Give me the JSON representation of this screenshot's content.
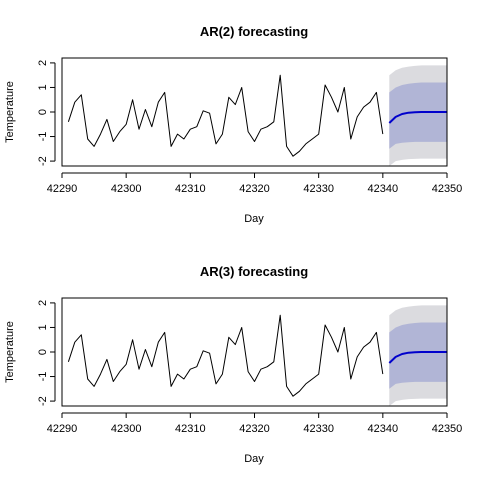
{
  "chart_data": [
    {
      "type": "line",
      "title": "AR(2) forecasting",
      "xlabel": "Day",
      "ylabel": "Temperature",
      "xlim": [
        42290,
        42350
      ],
      "ylim": [
        -2.2,
        2.2
      ],
      "x_ticks": [
        42290,
        42300,
        42310,
        42320,
        42330,
        42340,
        42350
      ],
      "y_ticks": [
        -2,
        -1,
        0,
        1,
        2
      ],
      "grid": false,
      "series": [
        {
          "role": "observed",
          "color": "#000000",
          "x": [
            42291,
            42292,
            42293,
            42294,
            42295,
            42296,
            42297,
            42298,
            42299,
            42300,
            42301,
            42302,
            42303,
            42304,
            42305,
            42306,
            42307,
            42308,
            42309,
            42310,
            42311,
            42312,
            42313,
            42314,
            42315,
            42316,
            42317,
            42318,
            42319,
            42320,
            42321,
            42322,
            42323,
            42324,
            42325,
            42326,
            42327,
            42328,
            42329,
            42330,
            42331,
            42332,
            42333,
            42334,
            42335,
            42336,
            42337,
            42338,
            42339,
            42340
          ],
          "y": [
            -0.4,
            0.4,
            0.7,
            -1.1,
            -1.4,
            -0.9,
            -0.3,
            -1.2,
            -0.8,
            -0.5,
            0.5,
            -0.7,
            0.1,
            -0.6,
            0.4,
            0.8,
            -1.4,
            -0.9,
            -1.1,
            -0.7,
            -0.6,
            0.05,
            -0.05,
            -1.3,
            -0.9,
            0.6,
            0.3,
            1.0,
            -0.8,
            -1.2,
            -0.7,
            -0.6,
            -0.4,
            1.5,
            -1.4,
            -1.8,
            -1.6,
            -1.3,
            -1.1,
            -0.9,
            1.1,
            0.6,
            0.0,
            1.0,
            -1.1,
            -0.2,
            0.2,
            0.4,
            0.8,
            -0.9
          ]
        },
        {
          "role": "forecast",
          "color": "#0000CC",
          "x": [
            42341,
            42342,
            42343,
            42344,
            42345,
            42346,
            42347,
            42348,
            42349,
            42350
          ],
          "y": [
            -0.45,
            -0.2,
            -0.08,
            -0.03,
            -0.01,
            0.0,
            0.0,
            0.0,
            0.0,
            0.0
          ]
        }
      ],
      "bands": [
        {
          "level": "outer",
          "color": "#DBDBDF",
          "x": [
            42341,
            42342,
            42343,
            42344,
            42345,
            42346,
            42347,
            42348,
            42349,
            42350
          ],
          "lower": [
            -2.2,
            -2.0,
            -1.95,
            -1.92,
            -1.91,
            -1.9,
            -1.9,
            -1.9,
            -1.9,
            -1.9
          ],
          "upper": [
            1.5,
            1.7,
            1.8,
            1.85,
            1.88,
            1.9,
            1.9,
            1.9,
            1.9,
            1.9
          ]
        },
        {
          "level": "inner",
          "color": "#B1B5D6",
          "x": [
            42341,
            42342,
            42343,
            42344,
            42345,
            42346,
            42347,
            42348,
            42349,
            42350
          ],
          "lower": [
            -1.5,
            -1.3,
            -1.25,
            -1.23,
            -1.22,
            -1.22,
            -1.22,
            -1.22,
            -1.22,
            -1.22
          ],
          "upper": [
            0.8,
            1.0,
            1.1,
            1.15,
            1.18,
            1.2,
            1.2,
            1.2,
            1.2,
            1.2
          ]
        }
      ]
    },
    {
      "type": "line",
      "title": "AR(3) forecasting",
      "xlabel": "Day",
      "ylabel": "Temperature",
      "xlim": [
        42290,
        42350
      ],
      "ylim": [
        -2.2,
        2.2
      ],
      "x_ticks": [
        42290,
        42300,
        42310,
        42320,
        42330,
        42340,
        42350
      ],
      "y_ticks": [
        -2,
        -1,
        0,
        1,
        2
      ],
      "grid": false,
      "series": [
        {
          "role": "observed",
          "color": "#000000",
          "x": [
            42291,
            42292,
            42293,
            42294,
            42295,
            42296,
            42297,
            42298,
            42299,
            42300,
            42301,
            42302,
            42303,
            42304,
            42305,
            42306,
            42307,
            42308,
            42309,
            42310,
            42311,
            42312,
            42313,
            42314,
            42315,
            42316,
            42317,
            42318,
            42319,
            42320,
            42321,
            42322,
            42323,
            42324,
            42325,
            42326,
            42327,
            42328,
            42329,
            42330,
            42331,
            42332,
            42333,
            42334,
            42335,
            42336,
            42337,
            42338,
            42339,
            42340
          ],
          "y": [
            -0.4,
            0.4,
            0.7,
            -1.1,
            -1.4,
            -0.9,
            -0.3,
            -1.2,
            -0.8,
            -0.5,
            0.5,
            -0.7,
            0.1,
            -0.6,
            0.4,
            0.8,
            -1.4,
            -0.9,
            -1.1,
            -0.7,
            -0.6,
            0.05,
            -0.05,
            -1.3,
            -0.9,
            0.6,
            0.3,
            1.0,
            -0.8,
            -1.2,
            -0.7,
            -0.6,
            -0.4,
            1.5,
            -1.4,
            -1.8,
            -1.6,
            -1.3,
            -1.1,
            -0.9,
            1.1,
            0.6,
            0.0,
            1.0,
            -1.1,
            -0.2,
            0.2,
            0.4,
            0.8,
            -0.9
          ]
        },
        {
          "role": "forecast",
          "color": "#0000CC",
          "x": [
            42341,
            42342,
            42343,
            42344,
            42345,
            42346,
            42347,
            42348,
            42349,
            42350
          ],
          "y": [
            -0.45,
            -0.2,
            -0.08,
            -0.03,
            -0.01,
            0.0,
            0.0,
            0.0,
            0.0,
            0.0
          ]
        }
      ],
      "bands": [
        {
          "level": "outer",
          "color": "#DBDBDF",
          "x": [
            42341,
            42342,
            42343,
            42344,
            42345,
            42346,
            42347,
            42348,
            42349,
            42350
          ],
          "lower": [
            -2.2,
            -2.0,
            -1.95,
            -1.92,
            -1.91,
            -1.9,
            -1.9,
            -1.9,
            -1.9,
            -1.9
          ],
          "upper": [
            1.5,
            1.7,
            1.8,
            1.85,
            1.88,
            1.9,
            1.9,
            1.9,
            1.9,
            1.9
          ]
        },
        {
          "level": "inner",
          "color": "#B1B5D6",
          "x": [
            42341,
            42342,
            42343,
            42344,
            42345,
            42346,
            42347,
            42348,
            42349,
            42350
          ],
          "lower": [
            -1.5,
            -1.3,
            -1.25,
            -1.23,
            -1.22,
            -1.22,
            -1.22,
            -1.22,
            -1.22,
            -1.22
          ],
          "upper": [
            0.8,
            1.0,
            1.1,
            1.15,
            1.18,
            1.2,
            1.2,
            1.2,
            1.2,
            1.2
          ]
        }
      ]
    }
  ]
}
